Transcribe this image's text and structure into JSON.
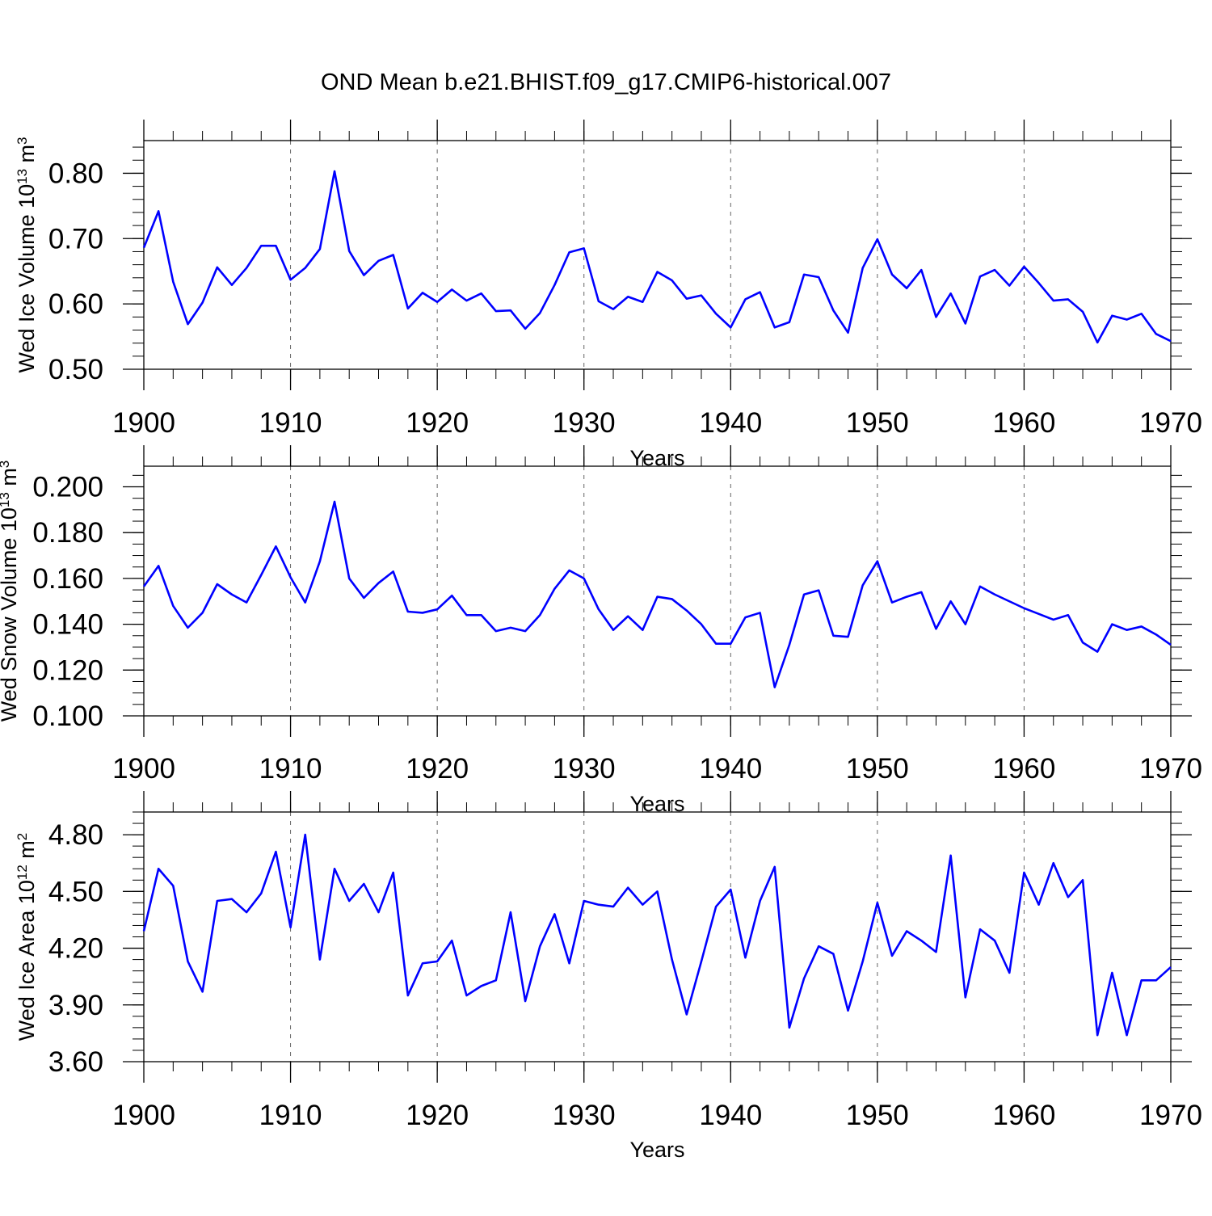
{
  "figure": {
    "title": "OND Mean b.e21.BHIST.f09_g17.CMIP6-historical.007",
    "line_color": "#0000ff"
  },
  "chart_data": [
    {
      "type": "line",
      "title": "",
      "xlabel": "Years",
      "ylabel": {
        "text": "Wed Ice Volume 10",
        "exp": "13",
        "unit": " m",
        "unit_exp": "3"
      },
      "xlim": [
        1900,
        1970
      ],
      "ylim": [
        0.5,
        0.85
      ],
      "x_ticks": [
        1900,
        1910,
        1920,
        1930,
        1940,
        1950,
        1960,
        1970
      ],
      "x_tick_labels": [
        "1900",
        "1910",
        "1920",
        "1930",
        "1940",
        "1950",
        "1960",
        "1970"
      ],
      "y_ticks": [
        0.5,
        0.6,
        0.7,
        0.8
      ],
      "y_tick_labels": [
        "0.50",
        "0.60",
        "0.70",
        "0.80"
      ],
      "y_minor_step": 0.02,
      "grid": "vertical dashed at major x ticks",
      "legend": "none",
      "x_start": 1900,
      "series": [
        {
          "values": [
            0.686,
            0.742,
            0.634,
            0.569,
            0.602,
            0.656,
            0.629,
            0.655,
            0.689,
            0.689,
            0.637,
            0.655,
            0.684,
            0.803,
            0.681,
            0.644,
            0.666,
            0.675,
            0.593,
            0.617,
            0.603,
            0.622,
            0.605,
            0.616,
            0.589,
            0.59,
            0.562,
            0.586,
            0.629,
            0.679,
            0.685,
            0.604,
            0.592,
            0.611,
            0.603,
            0.649,
            0.636,
            0.608,
            0.613,
            0.585,
            0.564,
            0.607,
            0.618,
            0.564,
            0.572,
            0.645,
            0.641,
            0.59,
            0.556,
            0.655,
            0.699,
            0.645,
            0.624,
            0.652,
            0.58,
            0.616,
            0.57,
            0.642,
            0.652,
            0.628,
            0.657,
            0.632,
            0.605,
            0.607,
            0.588,
            0.541,
            0.582,
            0.576,
            0.585,
            0.554,
            0.543
          ]
        }
      ]
    },
    {
      "type": "line",
      "title": "",
      "xlabel": "Years",
      "ylabel": {
        "text": "Wed Snow Volume 10",
        "exp": "13",
        "unit": " m",
        "unit_exp": "3"
      },
      "xlim": [
        1900,
        1970
      ],
      "ylim": [
        0.1,
        0.209
      ],
      "x_ticks": [
        1900,
        1910,
        1920,
        1930,
        1940,
        1950,
        1960,
        1970
      ],
      "x_tick_labels": [
        "1900",
        "1910",
        "1920",
        "1930",
        "1940",
        "1950",
        "1960",
        "1970"
      ],
      "y_ticks": [
        0.1,
        0.12,
        0.14,
        0.16,
        0.18,
        0.2
      ],
      "y_tick_labels": [
        "0.100",
        "0.120",
        "0.140",
        "0.160",
        "0.180",
        "0.200"
      ],
      "y_minor_step": 0.005,
      "grid": "vertical dashed at major x ticks",
      "legend": "none",
      "x_start": 1900,
      "series": [
        {
          "values": [
            0.1565,
            0.1655,
            0.148,
            0.1385,
            0.145,
            0.1575,
            0.153,
            0.1495,
            0.1615,
            0.174,
            0.1605,
            0.1495,
            0.1675,
            0.1935,
            0.16,
            0.1515,
            0.158,
            0.163,
            0.1455,
            0.145,
            0.1465,
            0.1525,
            0.144,
            0.144,
            0.137,
            0.1385,
            0.137,
            0.144,
            0.1555,
            0.1635,
            0.16,
            0.1465,
            0.1375,
            0.1435,
            0.1375,
            0.152,
            0.151,
            0.146,
            0.14,
            0.1315,
            0.1315,
            0.143,
            0.145,
            0.1125,
            0.131,
            0.153,
            0.1548,
            0.135,
            0.1345,
            0.157,
            0.1675,
            0.1495,
            0.152,
            0.154,
            0.138,
            0.15,
            0.14,
            0.1565,
            0.153,
            0.15,
            0.147,
            0.1445,
            0.142,
            0.144,
            0.132,
            0.128,
            0.14,
            0.1375,
            0.139,
            0.1355,
            0.131
          ]
        }
      ]
    },
    {
      "type": "line",
      "title": "",
      "xlabel": "Years",
      "ylabel": {
        "text": "Wed Ice Area 10",
        "exp": "12",
        "unit": " m",
        "unit_exp": "2"
      },
      "xlim": [
        1900,
        1970
      ],
      "ylim": [
        3.6,
        4.92
      ],
      "x_ticks": [
        1900,
        1910,
        1920,
        1930,
        1940,
        1950,
        1960,
        1970
      ],
      "x_tick_labels": [
        "1900",
        "1910",
        "1920",
        "1930",
        "1940",
        "1950",
        "1960",
        "1970"
      ],
      "y_ticks": [
        3.6,
        3.9,
        4.2,
        4.5,
        4.8
      ],
      "y_tick_labels": [
        "3.60",
        "3.90",
        "4.20",
        "4.50",
        "4.80"
      ],
      "y_minor_step": 0.06,
      "grid": "vertical dashed at major x ticks",
      "legend": "none",
      "x_start": 1900,
      "series": [
        {
          "values": [
            4.29,
            4.62,
            4.53,
            4.13,
            3.97,
            4.45,
            4.46,
            4.39,
            4.49,
            4.71,
            4.31,
            4.8,
            4.14,
            4.62,
            4.45,
            4.54,
            4.39,
            4.6,
            3.95,
            4.12,
            4.13,
            4.24,
            3.95,
            4.0,
            4.03,
            4.39,
            3.92,
            4.21,
            4.38,
            4.12,
            4.45,
            4.43,
            4.42,
            4.52,
            4.43,
            4.5,
            4.14,
            3.85,
            4.13,
            4.42,
            4.51,
            4.15,
            4.45,
            4.63,
            3.78,
            4.04,
            4.21,
            4.17,
            3.87,
            4.13,
            4.44,
            4.16,
            4.29,
            4.24,
            4.18,
            4.69,
            3.94,
            4.3,
            4.24,
            4.07,
            4.6,
            4.43,
            4.65,
            4.47,
            4.56,
            3.74,
            4.07,
            3.74,
            4.03,
            4.03,
            4.1
          ]
        }
      ]
    }
  ]
}
